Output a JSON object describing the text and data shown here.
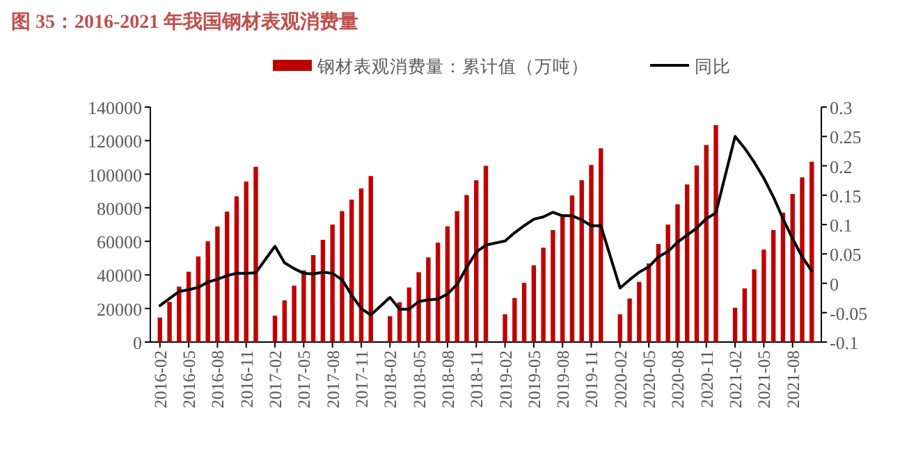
{
  "chart_data": {
    "type": "bar",
    "title": "图 35：2016-2021 年我国钢材表观消费量",
    "x": [
      "2016-02",
      "2016-03",
      "2016-04",
      "2016-05",
      "2016-06",
      "2016-07",
      "2016-08",
      "2016-09",
      "2016-10",
      "2016-11",
      "2016-12",
      "2017-02",
      "2017-03",
      "2017-04",
      "2017-05",
      "2017-06",
      "2017-07",
      "2017-08",
      "2017-09",
      "2017-10",
      "2017-11",
      "2017-12",
      "2018-02",
      "2018-03",
      "2018-04",
      "2018-05",
      "2018-06",
      "2018-07",
      "2018-08",
      "2018-09",
      "2018-10",
      "2018-11",
      "2018-12",
      "2019-02",
      "2019-03",
      "2019-04",
      "2019-05",
      "2019-06",
      "2019-07",
      "2019-08",
      "2019-09",
      "2019-10",
      "2019-11",
      "2019-12",
      "2020-02",
      "2020-03",
      "2020-04",
      "2020-05",
      "2020-06",
      "2020-07",
      "2020-08",
      "2020-09",
      "2020-10",
      "2020-11",
      "2020-12",
      "2021-02",
      "2021-03",
      "2021-04",
      "2021-05",
      "2021-06",
      "2021-07",
      "2021-08",
      "2021-09",
      "2021-10"
    ],
    "series": [
      {
        "name": "钢材表观消费量：累计值（万吨）",
        "color": "#c00000",
        "values": [
          14600,
          24000,
          33000,
          41900,
          51000,
          60000,
          68900,
          77700,
          86800,
          95600,
          104400,
          15700,
          24800,
          33600,
          42700,
          51800,
          60900,
          70000,
          78000,
          84800,
          91500,
          98900,
          15400,
          23700,
          32500,
          41600,
          50400,
          59200,
          68900,
          78000,
          87600,
          96400,
          105000,
          16500,
          26200,
          35300,
          45700,
          56200,
          66700,
          75800,
          87300,
          96400,
          105500,
          115400,
          16500,
          25900,
          35800,
          46800,
          58400,
          70000,
          82100,
          93900,
          105200,
          117400,
          129200,
          20400,
          32000,
          43300,
          55100,
          66700,
          77100,
          88200,
          98100,
          107400
        ]
      },
      {
        "name": "同比",
        "type": "line",
        "axis": "y2",
        "color": "#000000",
        "values": [
          -0.038,
          -0.026,
          -0.014,
          -0.011,
          -0.007,
          0.002,
          0.007,
          0.013,
          0.017,
          0.017,
          0.018,
          0.063,
          0.035,
          0.025,
          0.017,
          0.016,
          0.019,
          0.017,
          0.006,
          -0.02,
          -0.043,
          -0.054,
          -0.024,
          -0.044,
          -0.044,
          -0.031,
          -0.028,
          -0.027,
          -0.018,
          -0.002,
          0.027,
          0.053,
          0.065,
          0.072,
          0.086,
          0.098,
          0.109,
          0.113,
          0.121,
          0.115,
          0.115,
          0.108,
          0.098,
          0.098,
          -0.008,
          0.006,
          0.019,
          0.028,
          0.045,
          0.054,
          0.07,
          0.082,
          0.094,
          0.11,
          0.12,
          0.25,
          0.23,
          0.206,
          0.179,
          0.147,
          0.11,
          0.076,
          0.045,
          0.021
        ]
      }
    ],
    "xlim": [
      "2016-01",
      "2021-11"
    ],
    "xticks": [
      "2016-02",
      "2016-05",
      "2016-08",
      "2016-11",
      "2017-02",
      "2017-05",
      "2017-08",
      "2017-11",
      "2018-02",
      "2018-05",
      "2018-08",
      "2018-11",
      "2019-02",
      "2019-05",
      "2019-08",
      "2019-11",
      "2020-02",
      "2020-05",
      "2020-08",
      "2020-11",
      "2021-02",
      "2021-05",
      "2021-08"
    ],
    "ylim": [
      0,
      140000
    ],
    "yticks": [
      0,
      20000,
      40000,
      60000,
      80000,
      100000,
      120000,
      140000
    ],
    "y2lim": [
      -0.1,
      0.3
    ],
    "y2ticks": [
      -0.1,
      -0.05,
      0,
      0.05,
      0.1,
      0.15,
      0.2,
      0.25,
      0.3
    ],
    "legend": "top",
    "grid": false
  }
}
